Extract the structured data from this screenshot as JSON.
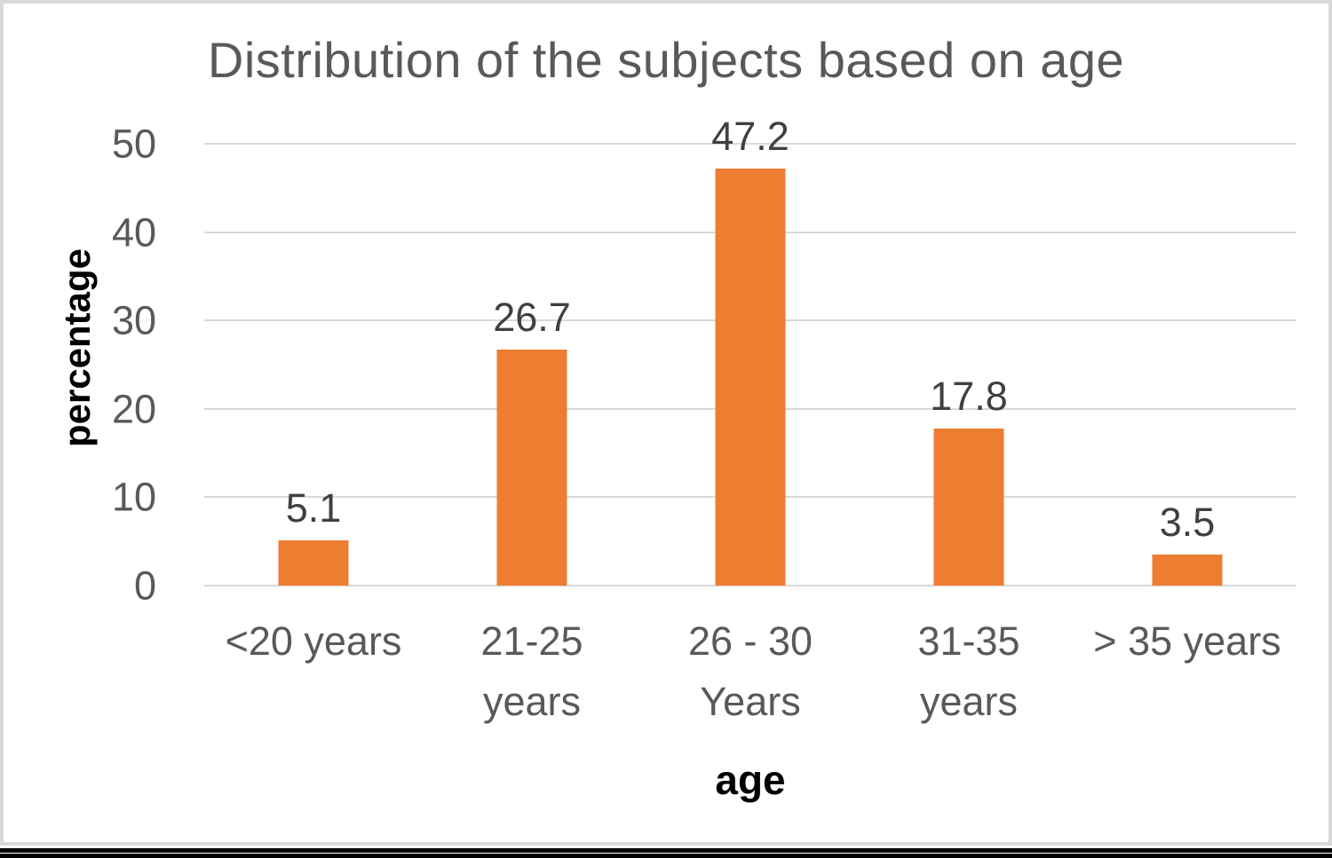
{
  "chart_data": {
    "type": "bar",
    "title": "Distribution of the subjects based on age",
    "xlabel": "age",
    "ylabel": "percentage",
    "categories": [
      "<20 years",
      "21-25\nyears",
      "26 - 30\nYears",
      "31-35\nyears",
      "> 35 years"
    ],
    "values": [
      5.1,
      26.7,
      47.2,
      17.8,
      3.5
    ],
    "data_labels": [
      "5.1",
      "26.7",
      "47.2",
      "17.8",
      "3.5"
    ],
    "yticks": [
      0,
      10,
      20,
      30,
      40,
      50
    ],
    "ylim": [
      0,
      50
    ],
    "grid": true,
    "legend_position": "none",
    "colors": {
      "bar": "#ED7D31",
      "gridline": "#D9D9D9",
      "frame_border": "#D9D9D9",
      "title_text": "#595959",
      "axis_tick_text": "#595959",
      "data_label_text": "#404040",
      "axis_title_text": "#000000",
      "bottom_rule": "#000000"
    }
  }
}
